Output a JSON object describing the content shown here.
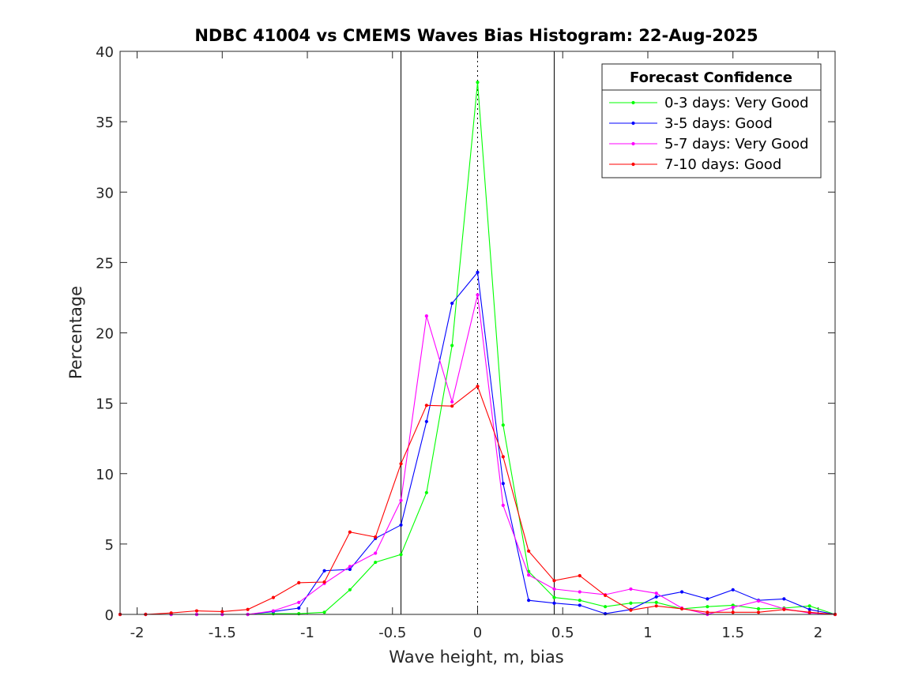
{
  "chart_data": {
    "type": "line",
    "title": "NDBC 41004 vs CMEMS Waves Bias Histogram: 22-Aug-2025",
    "xlabel": "Wave height, m, bias",
    "ylabel": "Percentage",
    "xlim": [
      -2.1,
      2.1
    ],
    "ylim": [
      0,
      40
    ],
    "xticks": [
      -2,
      -1.5,
      -1,
      -0.5,
      0,
      0.5,
      1,
      1.5,
      2
    ],
    "xtick_labels": [
      "-2",
      "-1.5",
      "-1",
      "-0.5",
      "0",
      "0.5",
      "1",
      "1.5",
      "2"
    ],
    "yticks": [
      0,
      5,
      10,
      15,
      20,
      25,
      30,
      35,
      40
    ],
    "ytick_labels": [
      "0",
      "5",
      "10",
      "15",
      "20",
      "25",
      "30",
      "35",
      "40"
    ],
    "reference_lines": [
      {
        "x": -0.45,
        "style": "solid"
      },
      {
        "x": 0.45,
        "style": "solid"
      },
      {
        "x": 0,
        "style": "dotted"
      }
    ],
    "legend": {
      "title": "Forecast Confidence",
      "location": "top-right"
    },
    "x": [
      -2.1,
      -1.95,
      -1.8,
      -1.65,
      -1.5,
      -1.35,
      -1.2,
      -1.05,
      -0.9,
      -0.75,
      -0.6,
      -0.45,
      -0.3,
      -0.15,
      0,
      0.15,
      0.3,
      0.45,
      0.6,
      0.75,
      0.9,
      1.05,
      1.2,
      1.35,
      1.5,
      1.65,
      1.8,
      1.95,
      2.1
    ],
    "series": [
      {
        "name": "0-3 days: Very Good",
        "color": "#00ff00",
        "values": [
          0,
          0,
          0,
          0,
          0,
          0,
          0.05,
          0.05,
          0.15,
          1.75,
          3.7,
          4.25,
          8.65,
          19.1,
          37.8,
          13.45,
          3.05,
          1.2,
          1.0,
          0.55,
          0.8,
          0.85,
          0.4,
          0.55,
          0.65,
          0.4,
          0.45,
          0.6,
          0
        ]
      },
      {
        "name": "3-5 days: Good",
        "color": "#0000ff",
        "values": [
          0,
          0,
          0,
          0,
          0,
          0,
          0.2,
          0.45,
          3.1,
          3.2,
          5.4,
          6.35,
          13.7,
          22.1,
          24.3,
          9.3,
          1.0,
          0.8,
          0.65,
          0.05,
          0.35,
          1.25,
          1.6,
          1.1,
          1.75,
          1.0,
          1.1,
          0.35,
          0
        ]
      },
      {
        "name": "5-7 days: Very Good",
        "color": "#ff00ff",
        "values": [
          0,
          0,
          0,
          0,
          0,
          0,
          0.25,
          0.85,
          2.2,
          3.4,
          4.35,
          8.1,
          21.2,
          15.1,
          22.7,
          7.75,
          2.8,
          1.8,
          1.6,
          1.4,
          1.8,
          1.5,
          0.45,
          0,
          0.5,
          0.95,
          0.4,
          0.1,
          0
        ]
      },
      {
        "name": "7-10 days: Good",
        "color": "#ff0000",
        "values": [
          0,
          0,
          0.1,
          0.25,
          0.2,
          0.35,
          1.2,
          2.25,
          2.3,
          5.85,
          5.5,
          10.7,
          14.85,
          14.8,
          16.2,
          11.2,
          4.5,
          2.4,
          2.75,
          1.35,
          0.3,
          0.6,
          0.4,
          0.15,
          0.15,
          0.15,
          0.35,
          0.15,
          0
        ]
      }
    ]
  }
}
